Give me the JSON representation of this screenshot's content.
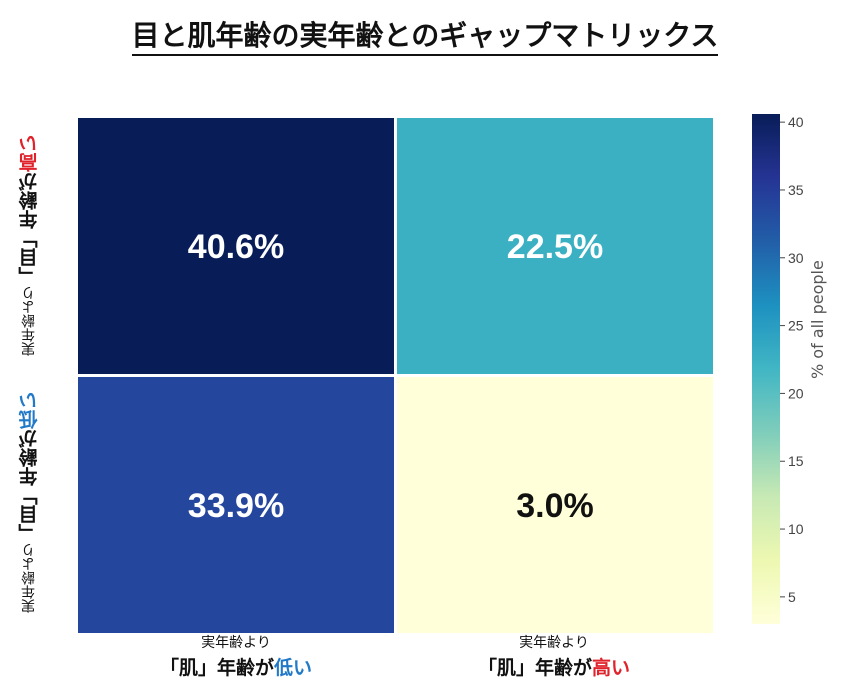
{
  "title": "目と肌年齢の実年齢とのギャップマトリックス",
  "chart_data": {
    "type": "heatmap",
    "cells": [
      {
        "row": 0,
        "col": 0,
        "value": 40.6,
        "label": "40.6%"
      },
      {
        "row": 0,
        "col": 1,
        "value": 22.5,
        "label": "22.5%"
      },
      {
        "row": 1,
        "col": 0,
        "value": 33.9,
        "label": "33.9%"
      },
      {
        "row": 1,
        "col": 1,
        "value": 3.0,
        "label": "3.0%"
      }
    ],
    "rows": [
      {
        "line1": "実年齢より",
        "prefix": "「目」年齢が",
        "emph": "高い",
        "emph_color": "#e0222b"
      },
      {
        "line1": "実年齢より",
        "prefix": "「目」年齢が",
        "emph": "低い",
        "emph_color": "#2179c8"
      }
    ],
    "cols": [
      {
        "line1": "実年齢より",
        "prefix": "「肌」年齢が",
        "emph": "低い",
        "emph_color": "#2179c8"
      },
      {
        "line1": "実年齢より",
        "prefix": "「肌」年齢が",
        "emph": "高い",
        "emph_color": "#e0222b"
      }
    ],
    "colorbar": {
      "label": "% of all people",
      "range": [
        3.0,
        40.6
      ],
      "ticks": [
        5,
        10,
        15,
        20,
        25,
        30,
        35,
        40
      ],
      "colormap": "YlGnBu"
    }
  }
}
